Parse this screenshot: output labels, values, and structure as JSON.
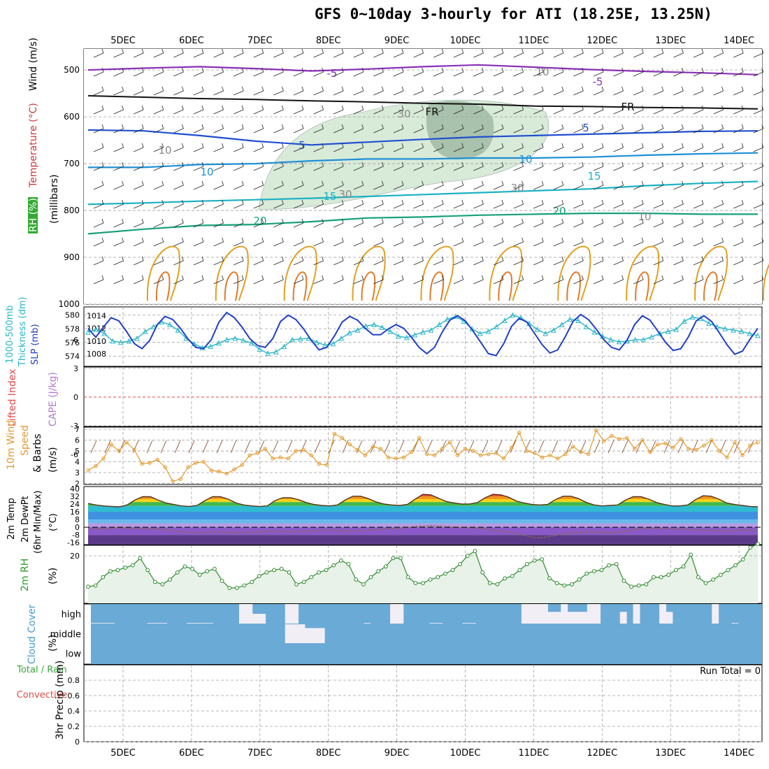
{
  "title": "GFS 0~10day 3-hourly for ATI (18.25E, 13.25N)",
  "colors": {
    "rh_fill": "#d8ead8",
    "rh_fill_dark": "#a9c2ad",
    "panel_fill": "#6aaad6",
    "cloud_block": "#f2eef6",
    "grid": "#a0a0a0",
    "temp_line": "#553322",
    "rh2m_line": "#2e8b2e",
    "wind10_line": "#e39a2e",
    "slp_line": "#2040c8",
    "thick_line": "#2ab6c8"
  },
  "chart_data": [
    {
      "id": "upper-air",
      "type": "line",
      "y_axis_label_left": [
        "RH (%)",
        "Temperature (°C)",
        "Wind (m/s)"
      ],
      "ylabel": "(millibars)",
      "y_ticks": [
        500,
        600,
        700,
        800,
        900,
        1000
      ],
      "x_ticks": [
        "5DEC",
        "6DEC",
        "7DEC",
        "8DEC",
        "9DEC",
        "10DEC",
        "11DEC",
        "12DEC",
        "13DEC",
        "14DEC"
      ],
      "contour_labels": [
        "-5",
        "-5",
        "FR",
        "FR",
        "5",
        "5",
        "10",
        "10",
        "15",
        "15",
        "20",
        "20",
        "10",
        "10",
        "30",
        "30",
        "30",
        "10"
      ],
      "isotherms": [
        {
          "name": "-5",
          "color": "#8a2fb8",
          "values": [
            500,
            496,
            493,
            497,
            502,
            498,
            493,
            489,
            494,
            499,
            503,
            506,
            510
          ]
        },
        {
          "name": "FR",
          "color": "#111111",
          "values": [
            555,
            558,
            561,
            563,
            566,
            568,
            571,
            573,
            577,
            578,
            580,
            581,
            583
          ]
        },
        {
          "name": "5",
          "color": "#1f4fd0",
          "values": [
            628,
            630,
            640,
            652,
            660,
            654,
            648,
            643,
            640,
            637,
            634,
            631,
            630
          ]
        },
        {
          "name": "10",
          "color": "#1e8fd6",
          "values": [
            708,
            708,
            702,
            700,
            694,
            690,
            690,
            688,
            688,
            686,
            682,
            679,
            677
          ]
        },
        {
          "name": "15",
          "color": "#1ab2c4",
          "values": [
            787,
            784,
            780,
            777,
            774,
            770,
            766,
            762,
            758,
            754,
            747,
            742,
            738
          ]
        },
        {
          "name": "20",
          "color": "#17a07a",
          "values": [
            850,
            840,
            832,
            830,
            824,
            816,
            814,
            810,
            808,
            806,
            806,
            808,
            808
          ]
        }
      ]
    },
    {
      "id": "thickness-slp",
      "type": "line",
      "y_axis_label_left": [
        "1000-500mb",
        "Thickness (dm)"
      ],
      "y_axis_label_right": "SLP (mb)",
      "y_ticks_left": [
        574,
        576,
        578,
        580
      ],
      "y_ticks_right": [
        1008,
        1010,
        1012,
        1014
      ],
      "series": [
        {
          "name": "SLP",
          "values": [
            1012.0,
            1010.6,
            1012.2,
            1013.7,
            1013.2,
            1011.5,
            1009.6,
            1008.8,
            1010.1,
            1012.6,
            1013.9,
            1013.4,
            1012.0,
            1010.3,
            1009.0,
            1008.8,
            1010.2,
            1013.0,
            1014.5,
            1013.7,
            1012.2,
            1010.4,
            1009.3,
            1009.0,
            1010.4,
            1013.1,
            1014.1,
            1013.4,
            1011.9,
            1010.1,
            1008.6,
            1009.0,
            1010.8,
            1013.0,
            1013.9,
            1013.3,
            1012.0,
            1011.0,
            1011.0,
            1011.9,
            1012.6,
            1012.0,
            1010.6,
            1009.0,
            1008.0,
            1009.0,
            1011.4,
            1013.3,
            1014.0,
            1013.2,
            1011.6,
            1009.8,
            1008.0,
            1007.7,
            1009.6,
            1012.3,
            1013.6,
            1013.0,
            1011.2,
            1009.4,
            1008.1,
            1008.6,
            1010.7,
            1013.1,
            1014.2,
            1013.4,
            1011.9,
            1010.2,
            1009.0,
            1008.6,
            1010.1,
            1012.6,
            1014.0,
            1013.3,
            1011.6,
            1009.8,
            1008.5,
            1008.8,
            1010.7,
            1013.2,
            1014.0,
            1013.1,
            1011.3,
            1009.4,
            1007.9,
            1008.4,
            1010.3,
            1012.0
          ]
        },
        {
          "name": "Thickness",
          "values": [
            577.5,
            577.9,
            577.3,
            576.2,
            576.0,
            576.2,
            576.6,
            577.6,
            578.3,
            579.0,
            578.6,
            577.8,
            576.6,
            575.8,
            575.2,
            575.4,
            575.9,
            576.4,
            576.6,
            576.3,
            575.9,
            575.0,
            574.4,
            574.6,
            575.4,
            576.4,
            576.5,
            576.6,
            576.0,
            575.6,
            575.8,
            576.6,
            577.4,
            577.8,
            578.4,
            578.6,
            578.2,
            577.6,
            576.9,
            576.7,
            577.1,
            577.5,
            577.8,
            578.6,
            579.4,
            579.8,
            579.1,
            578.0,
            577.3,
            577.6,
            578.3,
            579.2,
            580.0,
            579.6,
            578.8,
            577.9,
            577.3,
            577.8,
            578.6,
            579.4,
            579.2,
            578.3,
            577.5,
            576.9,
            576.4,
            576.1,
            576.2,
            576.4,
            576.4,
            576.8,
            577.3,
            577.6,
            577.9,
            579.1,
            579.7,
            579.5,
            578.8,
            578.3,
            578.0,
            577.8,
            577.6,
            577.3,
            577.0
          ]
        }
      ]
    },
    {
      "id": "li-cape",
      "type": "line",
      "y_axis_label_left": "Lifted Index",
      "y_axis_label_right": "CAPE (J/kg)",
      "y_ticks": [
        "6",
        "3",
        "0",
        "-3",
        "-6"
      ],
      "series": []
    },
    {
      "id": "wind10m",
      "type": "line",
      "y_axis_label_left": [
        "10m Wind",
        "Speed",
        "& Barbs"
      ],
      "ylabel": "(m/s)",
      "y_ticks": [
        2,
        3,
        4,
        5,
        6,
        7
      ],
      "series": [
        {
          "name": "10m Wind Speed",
          "values": [
            3.2,
            3.6,
            4.3,
            5.6,
            5.0,
            5.8,
            5.1,
            3.8,
            3.9,
            4.2,
            3.5,
            2.2,
            2.4,
            3.5,
            3.9,
            4.0,
            3.2,
            3.1,
            2.9,
            3.3,
            3.7,
            4.6,
            4.8,
            5.2,
            4.3,
            4.4,
            4.3,
            5.0,
            5.1,
            4.6,
            3.8,
            3.7,
            6.6,
            6.2,
            5.6,
            5.1,
            4.6,
            5.4,
            5.2,
            4.4,
            4.3,
            4.4,
            4.9,
            6.2,
            4.7,
            4.6,
            5.2,
            5.8,
            4.6,
            5.2,
            5.0,
            4.6,
            4.7,
            4.8,
            4.3,
            5.3,
            6.7,
            5.0,
            4.8,
            4.4,
            4.6,
            4.3,
            4.7,
            5.4,
            4.9,
            4.7,
            6.9,
            5.9,
            6.4,
            6.1,
            6.2,
            5.2,
            6.0,
            4.9,
            5.6,
            5.7,
            5.3,
            6.1,
            5.2,
            5.1,
            5.5,
            6.0,
            5.0,
            4.4,
            5.8,
            4.6,
            5.5,
            5.8
          ]
        }
      ]
    },
    {
      "id": "temp2m",
      "type": "area",
      "y_axis_label_left": [
        "2m Temp",
        "2m DewPt",
        "(6hr Min/Max)"
      ],
      "ylabel": "(°C)",
      "y_ticks": [
        "40",
        "32",
        "24",
        "16",
        "8",
        "0",
        "-8",
        "-16"
      ],
      "series": [
        {
          "name": "2m Temp",
          "values": [
            24.5,
            23.0,
            22.0,
            21.5,
            21.0,
            23.0,
            28.0,
            31.5,
            31.5,
            28.0,
            25.0,
            23.5,
            22.0,
            21.5,
            22.5,
            27.5,
            31.5,
            31.5,
            29.0,
            25.0,
            23.0,
            22.0,
            21.5,
            22.0,
            27.5,
            30.5,
            30.5,
            28.5,
            25.5,
            23.5,
            22.5,
            22.0,
            23.0,
            28.0,
            32.0,
            32.0,
            29.5,
            26.0,
            24.0,
            23.0,
            22.5,
            23.5,
            29.0,
            34.0,
            33.5,
            30.0,
            26.5,
            25.0,
            24.0,
            24.0,
            25.5,
            30.5,
            34.0,
            33.5,
            31.0,
            27.0,
            25.0,
            23.5,
            23.0,
            23.5,
            28.5,
            32.0,
            32.0,
            29.5,
            25.5,
            23.0,
            22.0,
            22.5,
            23.0,
            28.0,
            31.5,
            31.5,
            29.0,
            25.5,
            23.5,
            22.0,
            22.0,
            23.0,
            28.5,
            32.5,
            32.0,
            29.0,
            25.0,
            23.5,
            22.5,
            21.5,
            21.0
          ]
        },
        {
          "name": "2m DewPt",
          "values": [
            -1.0,
            -1.5,
            -2.0,
            -1.0,
            -0.5,
            -1.0,
            -1.5,
            -1.0,
            -1.5,
            -2.0,
            -2.5,
            -3.5,
            -4.5,
            -5.5,
            -6.0,
            -5.5,
            -5.0,
            -5.0,
            -5.5,
            -6.0,
            -5.5,
            -5.0,
            -5.0,
            -4.5,
            -4.0,
            -4.5,
            -5.0,
            -4.5,
            -4.0,
            -3.5,
            -3.0,
            -3.0,
            -3.5,
            -4.0,
            -4.0,
            -3.5,
            -3.0,
            -2.5,
            -2.0,
            -1.5,
            -1.0,
            -0.5,
            0.5,
            1.0,
            1.5,
            1.0,
            0.5,
            0.0,
            -0.5,
            -0.5,
            -1.0,
            -2.0,
            -3.0,
            -4.0,
            -5.0,
            -6.5,
            -8.5,
            -10.5,
            -11.0,
            -10.0,
            -8.5,
            -7.0,
            -6.0,
            -5.5,
            -5.0,
            -5.0,
            -5.5,
            -6.0,
            -5.5,
            -4.0,
            -2.5,
            -1.5,
            -1.0,
            -1.0,
            -1.5,
            -2.0,
            -2.0,
            -2.5,
            -2.5,
            -3.0,
            -3.0,
            -3.5,
            -3.5,
            -3.5,
            -3.0,
            -3.0,
            -3.0
          ]
        }
      ]
    },
    {
      "id": "rh2m",
      "type": "area",
      "y_axis_label_left": "2m RH",
      "ylabel": "(%)",
      "y_ticks": [
        20
      ],
      "series": [
        {
          "name": "2m RH",
          "values": [
            7.0,
            7.5,
            11.0,
            13.5,
            14.0,
            15.0,
            16.0,
            19.0,
            14.0,
            9.0,
            8.0,
            10.0,
            13.0,
            15.5,
            14.5,
            12.0,
            13.5,
            14.5,
            9.5,
            6.5,
            6.5,
            7.5,
            9.0,
            11.5,
            13.0,
            14.0,
            14.5,
            13.0,
            8.0,
            9.0,
            11.0,
            13.0,
            14.0,
            16.0,
            18.0,
            16.5,
            10.0,
            8.0,
            11.0,
            13.5,
            15.5,
            19.0,
            19.0,
            11.0,
            8.5,
            8.5,
            10.0,
            11.0,
            12.5,
            14.0,
            16.5,
            20.0,
            22.0,
            13.0,
            8.5,
            8.0,
            10.5,
            11.5,
            14.0,
            16.5,
            18.0,
            18.5,
            10.5,
            8.5,
            7.5,
            8.0,
            10.0,
            12.5,
            13.5,
            14.0,
            16.0,
            16.5,
            9.5,
            7.0,
            7.5,
            8.0,
            11.0,
            11.0,
            12.0,
            14.0,
            15.5,
            20.5,
            11.0,
            8.5,
            10.0,
            12.0,
            14.0,
            16.0,
            18.5,
            23.5,
            25.0
          ]
        }
      ]
    },
    {
      "id": "cloud",
      "type": "bar",
      "y_axis_label_left": "Cloud Cover",
      "ylabel": "(%)",
      "y_ticks": [
        "high",
        "middle",
        "low"
      ],
      "series": [
        {
          "name": "high",
          "values": [
            3,
            3,
            3,
            3,
            0,
            0,
            0,
            0,
            0,
            3,
            3,
            3,
            0,
            0,
            0,
            3,
            3,
            3,
            3,
            0,
            0,
            0,
            0,
            100,
            100,
            50,
            50,
            0,
            0,
            0,
            100,
            100,
            0,
            0,
            0,
            0,
            0,
            0,
            0,
            0,
            0,
            0,
            3,
            0,
            0,
            0,
            100,
            100,
            0,
            0,
            0,
            0,
            3,
            3,
            0,
            0,
            0,
            3,
            3,
            0,
            0,
            0,
            0,
            0,
            0,
            0,
            100,
            100,
            100,
            100,
            60,
            60,
            100,
            60,
            60,
            60,
            100,
            100,
            0,
            0,
            0,
            60,
            0,
            100,
            0,
            0,
            0,
            100,
            60,
            0,
            0,
            0,
            0,
            0,
            0,
            100,
            0,
            0,
            3,
            0,
            0,
            0
          ]
        },
        {
          "name": "middle",
          "values": [
            0,
            0,
            0,
            0,
            0,
            0,
            0,
            0,
            0,
            0,
            0,
            0,
            0,
            0,
            0,
            0,
            0,
            0,
            0,
            0,
            0,
            0,
            0,
            0,
            0,
            0,
            0,
            0,
            0,
            0,
            100,
            100,
            100,
            80,
            80,
            80,
            0,
            0,
            0,
            0,
            0,
            0,
            0,
            0,
            0,
            0,
            0,
            0,
            0,
            0,
            0,
            0,
            0,
            0,
            0,
            0,
            0,
            0,
            0,
            0,
            0,
            0,
            0,
            0,
            0,
            0,
            0,
            0,
            0,
            0,
            0,
            0,
            0,
            0,
            0,
            0,
            0,
            0,
            0,
            0,
            0,
            0,
            0,
            0,
            0,
            0,
            0,
            0,
            0,
            0,
            0,
            0,
            0,
            0,
            0,
            0,
            0,
            0,
            0,
            0,
            0,
            0
          ]
        },
        {
          "name": "low",
          "values": []
        }
      ]
    },
    {
      "id": "precip",
      "type": "bar",
      "y_axis_label_left": [
        "Total / Rain",
        "Convective"
      ],
      "ylabel": "3hr Precip (mm)",
      "y_ticks": [
        0,
        0.2,
        0.4,
        0.6,
        0.8
      ],
      "ylim": [
        0,
        1
      ],
      "annotation": "Run Total = 0",
      "series": []
    }
  ]
}
